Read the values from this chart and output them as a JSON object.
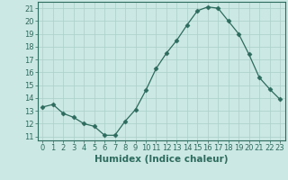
{
  "x": [
    0,
    1,
    2,
    3,
    4,
    5,
    6,
    7,
    8,
    9,
    10,
    11,
    12,
    13,
    14,
    15,
    16,
    17,
    18,
    19,
    20,
    21,
    22,
    23
  ],
  "y": [
    13.3,
    13.5,
    12.8,
    12.5,
    12.0,
    11.8,
    11.1,
    11.1,
    12.2,
    13.1,
    14.6,
    16.3,
    17.5,
    18.5,
    19.7,
    20.8,
    21.1,
    21.0,
    20.0,
    19.0,
    17.4,
    15.6,
    14.7,
    13.9
  ],
  "line_color": "#2d6b5e",
  "marker": "D",
  "marker_size": 2.5,
  "bg_color": "#cce8e4",
  "grid_color": "#aacfca",
  "xlabel": "Humidex (Indice chaleur)",
  "ylabel_ticks": [
    11,
    12,
    13,
    14,
    15,
    16,
    17,
    18,
    19,
    20,
    21
  ],
  "ylim": [
    10.7,
    21.5
  ],
  "xlim": [
    -0.5,
    23.5
  ],
  "tick_color": "#2d6b5e",
  "label_color": "#2d6b5e",
  "font_size": 6,
  "xlabel_font_size": 7.5
}
